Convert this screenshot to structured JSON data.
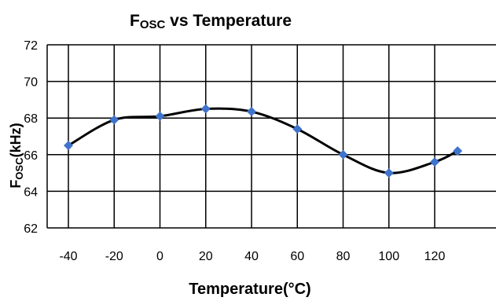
{
  "chart_data": {
    "type": "line",
    "title": {
      "main": "F",
      "sub": "OSC",
      "rest": " vs Temperature"
    },
    "xlabel": "Temperature(°C)",
    "ylabel": {
      "main": "F",
      "sub": "OSC",
      "rest": "(kHz)"
    },
    "xlim": [
      -40,
      130
    ],
    "ylim": [
      62,
      72
    ],
    "xticks": [
      -40,
      -20,
      0,
      20,
      40,
      60,
      80,
      100,
      120
    ],
    "yticks": [
      62,
      64,
      66,
      68,
      70,
      72
    ],
    "grid": true,
    "x": [
      -40,
      -20,
      0,
      20,
      40,
      60,
      80,
      100,
      120,
      130
    ],
    "y": [
      66.5,
      67.9,
      68.1,
      68.5,
      68.35,
      67.4,
      66.0,
      65.0,
      65.6,
      66.2
    ],
    "line_color": "#000000",
    "marker_color": "#3f74cc",
    "marker": "diamond"
  }
}
